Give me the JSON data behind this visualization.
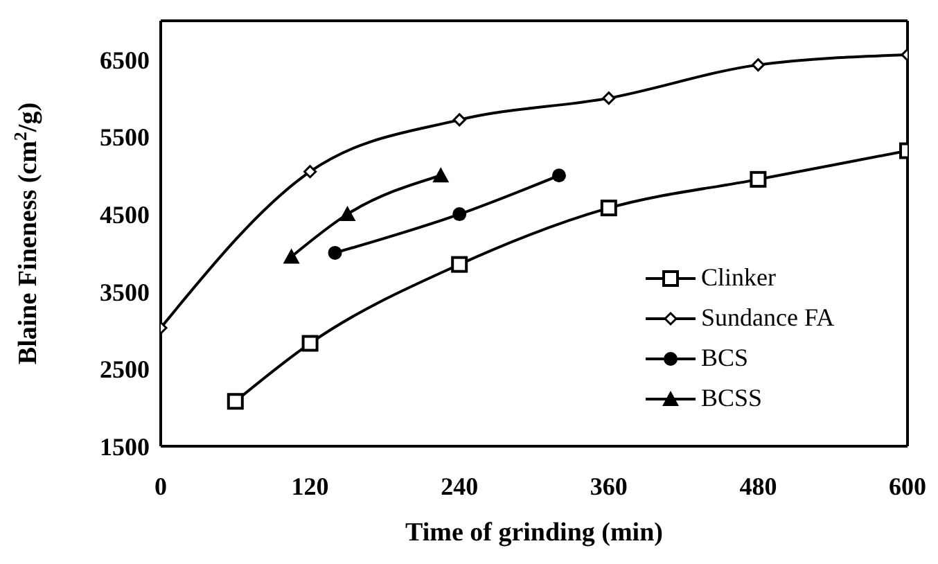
{
  "chart_data": {
    "type": "line",
    "xlabel": "Time of grinding (min)",
    "ylabel": "Blaine Fineness (cm$^{2}$/g)",
    "xlim": [
      0,
      600
    ],
    "xticks": [
      0,
      120,
      240,
      360,
      480,
      600
    ],
    "ylim": [
      1500,
      7000
    ],
    "yticks": [
      1500,
      2500,
      3500,
      4500,
      5500,
      6500
    ],
    "grid": false,
    "legend": "right",
    "line_style": "solid",
    "series": [
      {
        "name": "Clinker",
        "color": "#000000",
        "marker": "square",
        "x": [
          60,
          120,
          240,
          360,
          480,
          600
        ],
        "values": [
          2080,
          2830,
          3850,
          4580,
          4950,
          5320
        ]
      },
      {
        "name": "Sundance FA",
        "color": "#000000",
        "marker": "diamond",
        "x": [
          0,
          120,
          240,
          360,
          480,
          600
        ],
        "values": [
          3030,
          5050,
          5720,
          6000,
          6430,
          6560
        ]
      },
      {
        "name": "BCS",
        "color": "#000000",
        "marker": "circle",
        "x": [
          140,
          240,
          320
        ],
        "values": [
          4000,
          4500,
          5000
        ]
      },
      {
        "name": "BCSS",
        "color": "#000000",
        "marker": "triangle",
        "x": [
          105,
          150,
          225
        ],
        "values": [
          3950,
          4500,
          5000
        ]
      }
    ]
  }
}
